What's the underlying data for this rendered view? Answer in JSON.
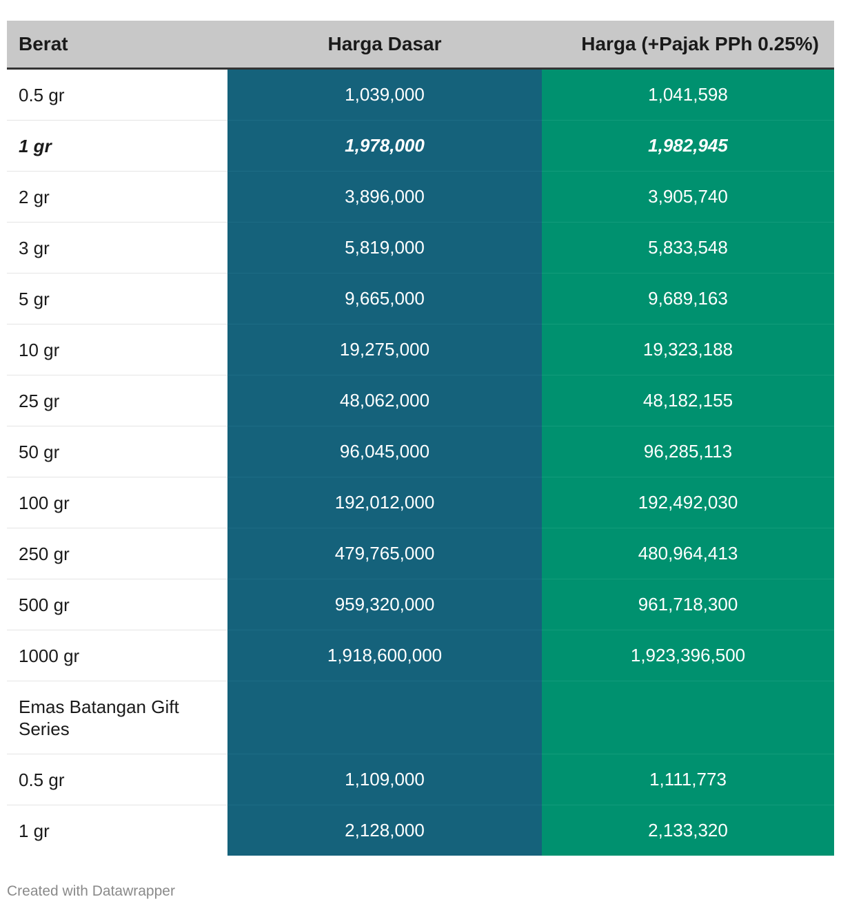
{
  "chart_data": {
    "type": "table",
    "columns": [
      "Berat",
      "Harga Dasar",
      "Harga (+Pajak PPh 0.25%)"
    ],
    "rows": [
      {
        "weight": "0.5 gr",
        "base": "1,039,000",
        "tax": "1,041,598",
        "emphasis": false
      },
      {
        "weight": "1 gr",
        "base": "1,978,000",
        "tax": "1,982,945",
        "emphasis": true
      },
      {
        "weight": "2 gr",
        "base": "3,896,000",
        "tax": "3,905,740",
        "emphasis": false
      },
      {
        "weight": "3 gr",
        "base": "5,819,000",
        "tax": "5,833,548",
        "emphasis": false
      },
      {
        "weight": "5 gr",
        "base": "9,665,000",
        "tax": "9,689,163",
        "emphasis": false
      },
      {
        "weight": "10 gr",
        "base": "19,275,000",
        "tax": "19,323,188",
        "emphasis": false
      },
      {
        "weight": "25 gr",
        "base": "48,062,000",
        "tax": "48,182,155",
        "emphasis": false
      },
      {
        "weight": "50 gr",
        "base": "96,045,000",
        "tax": "96,285,113",
        "emphasis": false
      },
      {
        "weight": "100 gr",
        "base": "192,012,000",
        "tax": "192,492,030",
        "emphasis": false
      },
      {
        "weight": "250 gr",
        "base": "479,765,000",
        "tax": "480,964,413",
        "emphasis": false
      },
      {
        "weight": "500 gr",
        "base": "959,320,000",
        "tax": "961,718,300",
        "emphasis": false
      },
      {
        "weight": "1000 gr",
        "base": "1,918,600,000",
        "tax": "1,923,396,500",
        "emphasis": false
      },
      {
        "weight": "Emas Batangan Gift Series",
        "base": "",
        "tax": "",
        "emphasis": false,
        "section": true
      },
      {
        "weight": "0.5 gr",
        "base": "1,109,000",
        "tax": "1,111,773",
        "emphasis": false
      },
      {
        "weight": "1 gr",
        "base": "2,128,000",
        "tax": "2,133,320",
        "emphasis": false
      }
    ],
    "colors": {
      "header_bg": "#c8c8c8",
      "base_column": "#15627b",
      "tax_column": "#00916f"
    }
  },
  "footer": {
    "credit": "Created with Datawrapper"
  }
}
